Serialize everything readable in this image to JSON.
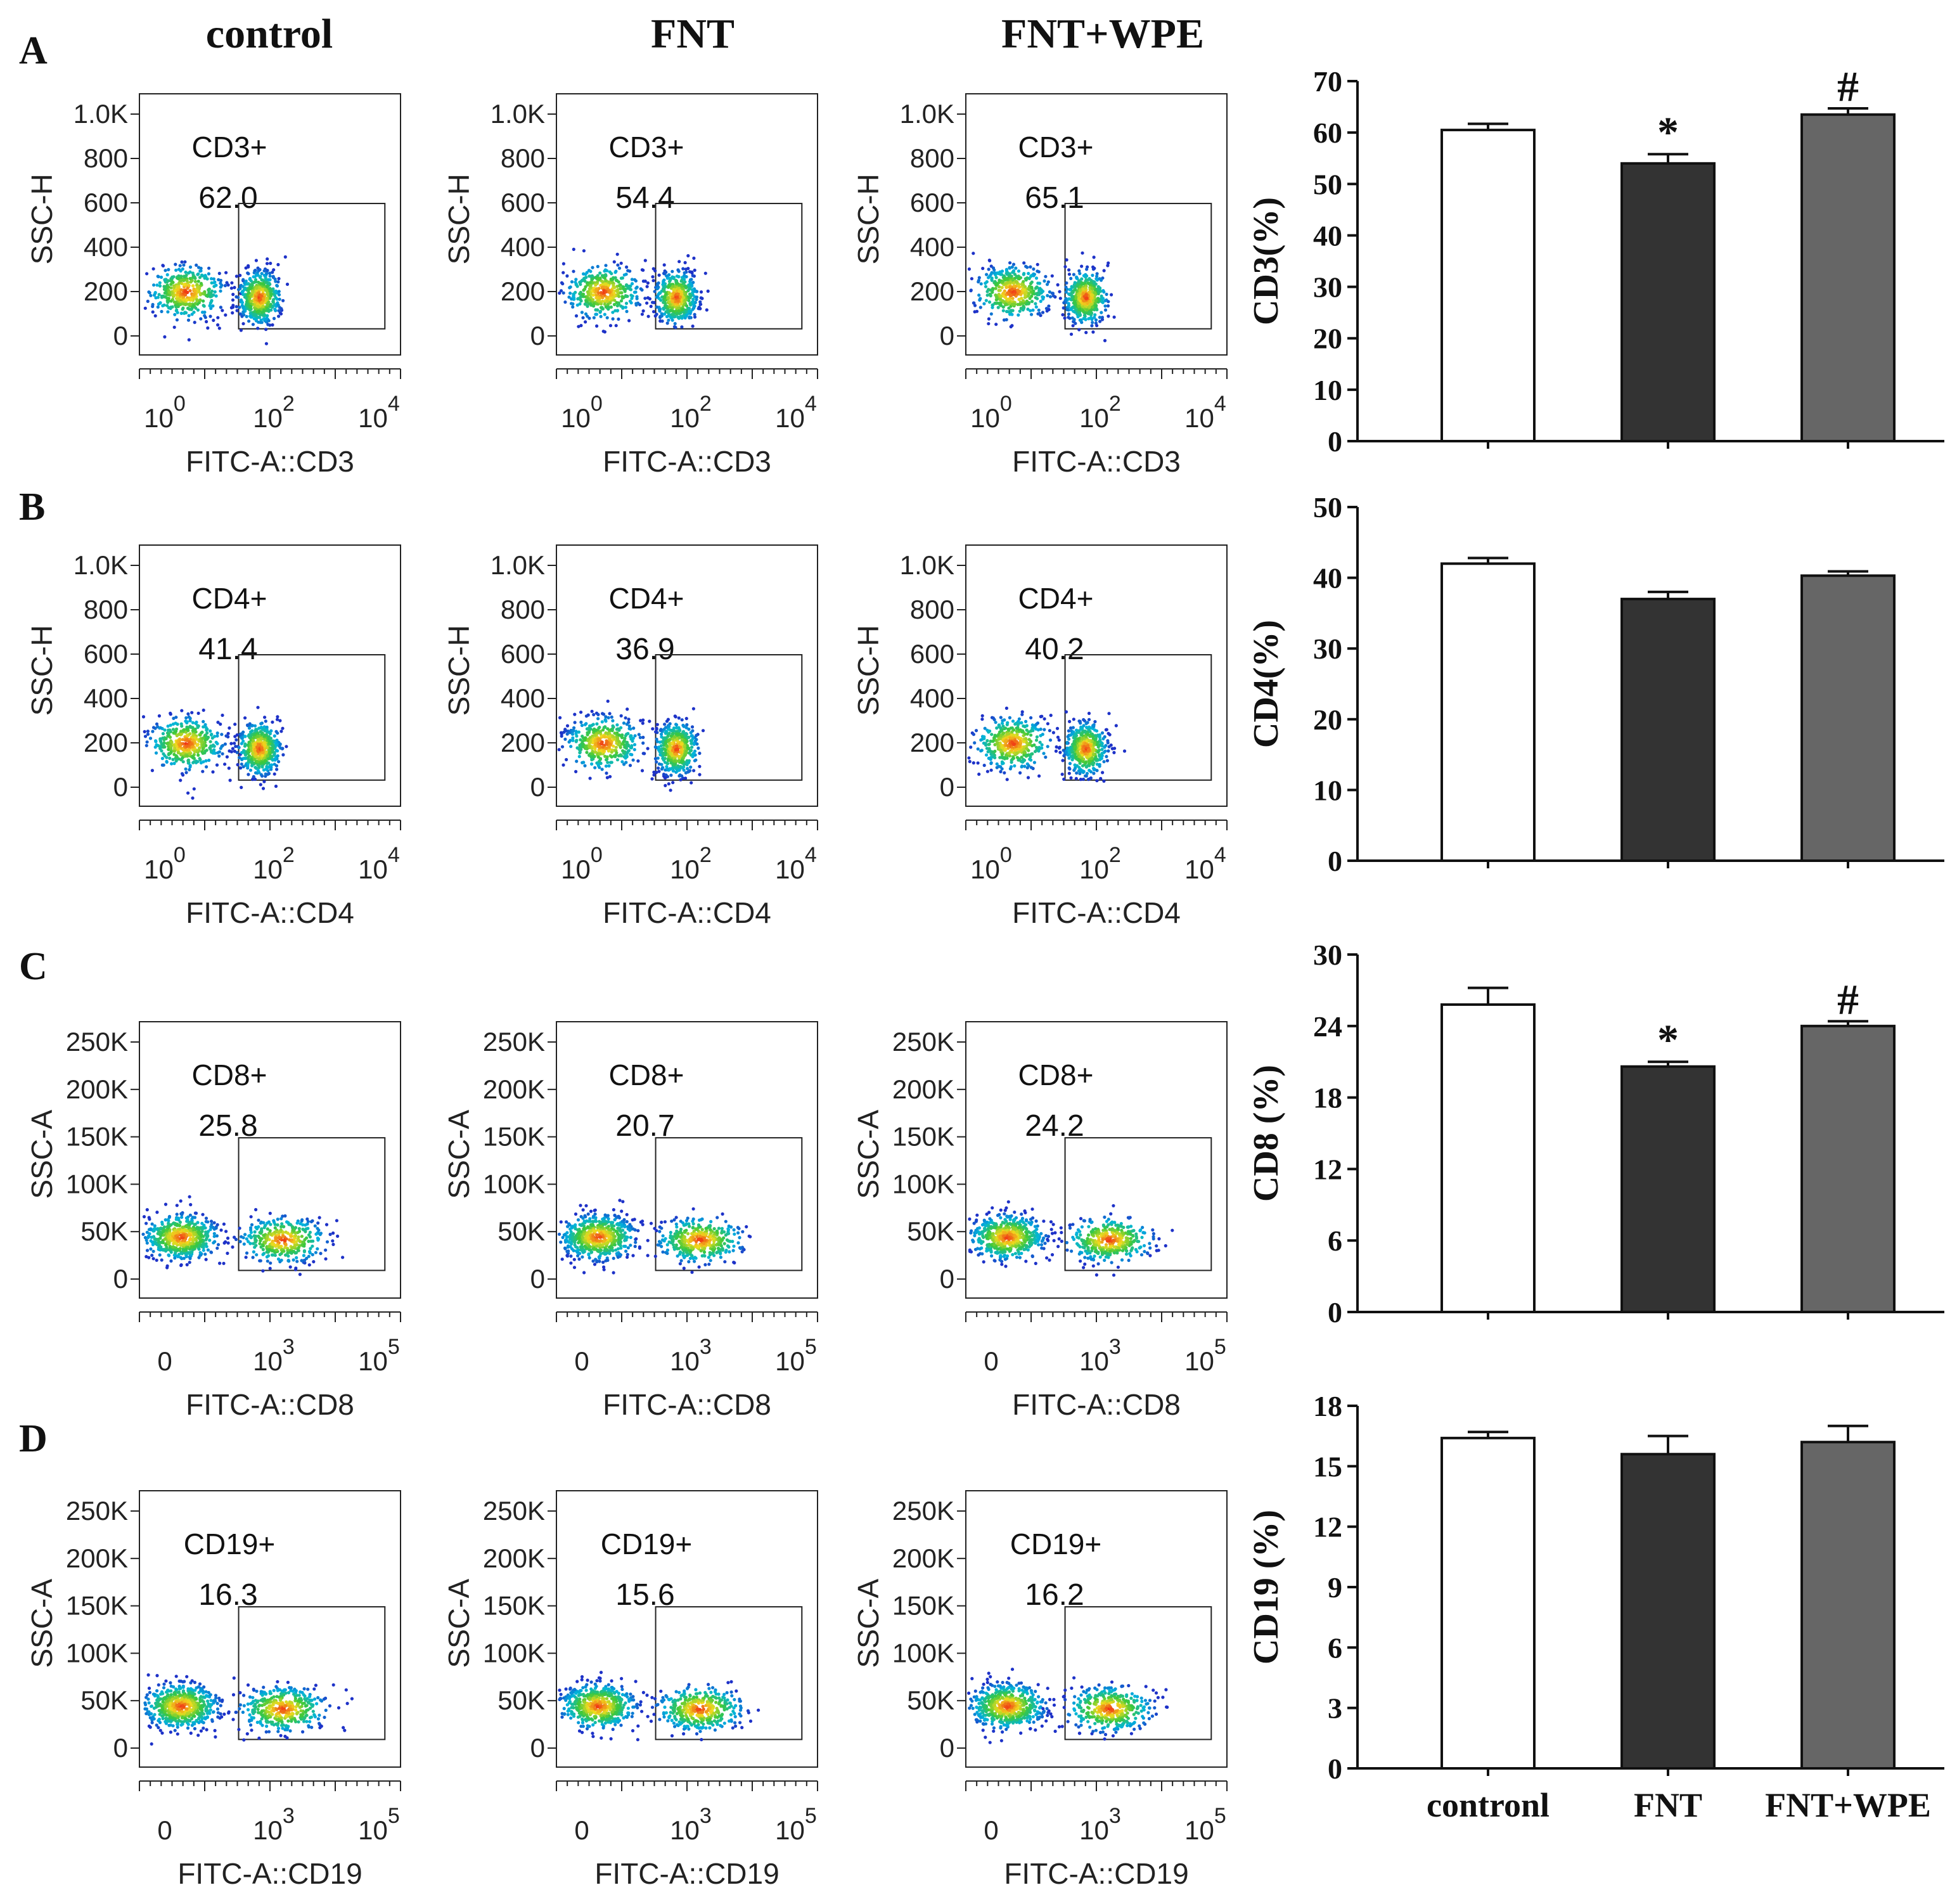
{
  "column_headers": [
    "control",
    "FNT",
    "FNT+WPE"
  ],
  "rows": [
    {
      "panel": "A",
      "y_label": "SSC-H",
      "y_ticks": [
        "1.0K",
        "800",
        "600",
        "400",
        "200",
        "0"
      ],
      "x_label": "FITC-A::CD3",
      "x_ticks": [
        {
          "base": "10",
          "exp": "0"
        },
        {
          "base": "10",
          "exp": "2"
        },
        {
          "base": "10",
          "exp": "4"
        }
      ],
      "gate_label": "CD3+",
      "gate_values": [
        "62.0",
        "54.4",
        "65.1"
      ]
    },
    {
      "panel": "B",
      "y_label": "SSC-H",
      "y_ticks": [
        "1.0K",
        "800",
        "600",
        "400",
        "200",
        "0"
      ],
      "x_label": "FITC-A::CD4",
      "x_ticks": [
        {
          "base": "10",
          "exp": "0"
        },
        {
          "base": "10",
          "exp": "2"
        },
        {
          "base": "10",
          "exp": "4"
        }
      ],
      "gate_label": "CD4+",
      "gate_values": [
        "41.4",
        "36.9",
        "40.2"
      ]
    },
    {
      "panel": "C",
      "y_label": "SSC-A",
      "y_ticks": [
        "250K",
        "200K",
        "150K",
        "100K",
        "50K",
        "0"
      ],
      "x_label": "FITC-A::CD8",
      "x_ticks": [
        {
          "base": "0",
          "exp": ""
        },
        {
          "base": "10",
          "exp": "3"
        },
        {
          "base": "10",
          "exp": "5"
        }
      ],
      "gate_label": "CD8+",
      "gate_values": [
        "25.8",
        "20.7",
        "24.2"
      ]
    },
    {
      "panel": "D",
      "y_label": "SSC-A",
      "y_ticks": [
        "250K",
        "200K",
        "150K",
        "100K",
        "50K",
        "0"
      ],
      "x_label": "FITC-A::CD19",
      "x_ticks": [
        {
          "base": "0",
          "exp": ""
        },
        {
          "base": "10",
          "exp": "3"
        },
        {
          "base": "10",
          "exp": "5"
        }
      ],
      "gate_label": "CD19+",
      "gate_values": [
        "16.3",
        "15.6",
        "16.2"
      ]
    }
  ],
  "chart_data": [
    {
      "type": "bar",
      "categories": [
        "contronl",
        "FNT",
        "FNT+WPE"
      ],
      "ylabel": "CD3(%)",
      "ylim": [
        0,
        70
      ],
      "yticks": [
        0,
        10,
        20,
        30,
        40,
        50,
        60,
        70
      ],
      "values": [
        60.5,
        54,
        63.5
      ],
      "errors": [
        1.2,
        1.8,
        1.2
      ],
      "annotations": [
        "",
        "*",
        "#"
      ],
      "colors": [
        "#ffffff",
        "#333333",
        "#666666"
      ]
    },
    {
      "type": "bar",
      "categories": [
        "contronl",
        "FNT",
        "FNT+WPE"
      ],
      "ylabel": "CD4(%)",
      "ylim": [
        0,
        50
      ],
      "yticks": [
        0,
        10,
        20,
        30,
        40,
        50
      ],
      "values": [
        42,
        37,
        40.3
      ],
      "errors": [
        0.8,
        1.0,
        0.6
      ],
      "annotations": [
        "",
        "",
        ""
      ],
      "colors": [
        "#ffffff",
        "#333333",
        "#666666"
      ]
    },
    {
      "type": "bar",
      "categories": [
        "contronl",
        "FNT",
        "FNT+WPE"
      ],
      "ylabel": "CD8 (%)",
      "ylim": [
        0,
        30
      ],
      "yticks": [
        0,
        6,
        12,
        18,
        24,
        30
      ],
      "values": [
        25.8,
        20.6,
        24.0
      ],
      "errors": [
        1.4,
        0.4,
        0.4
      ],
      "annotations": [
        "",
        "*",
        "#"
      ],
      "colors": [
        "#ffffff",
        "#333333",
        "#666666"
      ]
    },
    {
      "type": "bar",
      "categories": [
        "contronl",
        "FNT",
        "FNT+WPE"
      ],
      "ylabel": "CD19 (%)",
      "ylim": [
        0,
        18
      ],
      "yticks": [
        0,
        3,
        6,
        9,
        12,
        15,
        18
      ],
      "values": [
        16.4,
        15.6,
        16.2
      ],
      "errors": [
        0.3,
        0.9,
        0.8
      ],
      "annotations": [
        "",
        "",
        ""
      ],
      "colors": [
        "#ffffff",
        "#333333",
        "#666666"
      ]
    }
  ]
}
